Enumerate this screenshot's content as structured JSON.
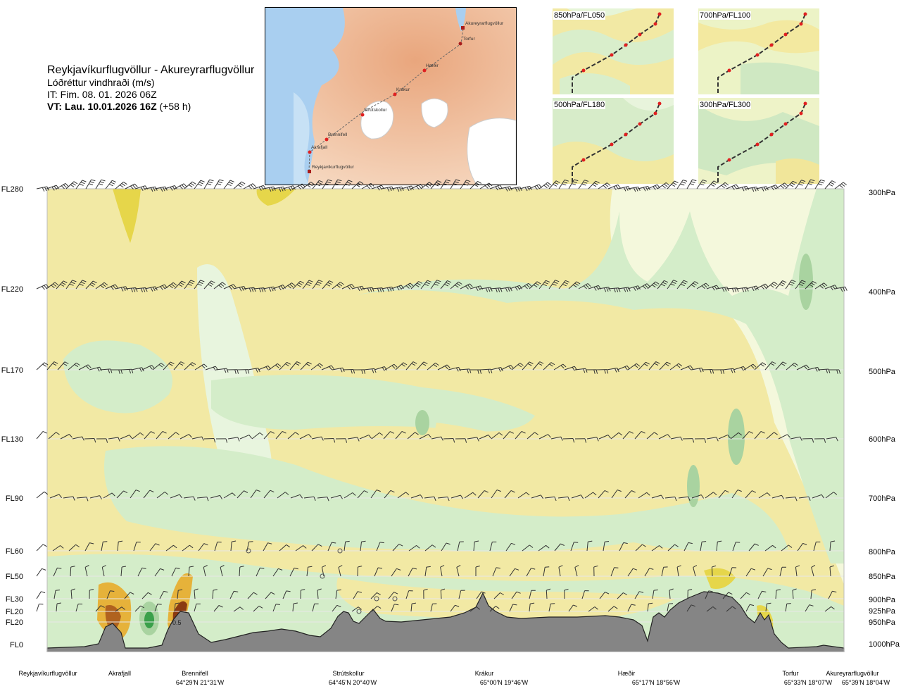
{
  "header": {
    "route": "Reykjavíkurflugvöllur - Akureyrarflugvöllur",
    "product": "Lóðréttur vindhraði (m/s)",
    "init_time": "IT: Fim. 08. 01. 2026 06Z",
    "valid_time": "VT: Lau. 10.01.2026 16Z",
    "lead": "(+58 h)"
  },
  "route_map": {
    "points": [
      "Akureyrarflugvöllur",
      "Torfur",
      "Hæðir",
      "Krákur",
      "Strútskollur",
      "Brennifell",
      "Akrafjall",
      "Reykjavíkurflugvöllur"
    ]
  },
  "mini_maps": [
    {
      "label": "850hPa/FL050"
    },
    {
      "label": "700hPa/FL100"
    },
    {
      "label": "500hPa/FL180"
    },
    {
      "label": "300hPa/FL300"
    }
  ],
  "chart_data": {
    "type": "heatmap",
    "title": "Lóðréttur vindhraði (m/s)",
    "levels": [
      {
        "fl": "FL280",
        "hpa": "300hPa"
      },
      {
        "fl": "FL220",
        "hpa": "400hPa"
      },
      {
        "fl": "FL170",
        "hpa": "500hPa"
      },
      {
        "fl": "FL130",
        "hpa": "600hPa"
      },
      {
        "fl": "FL90",
        "hpa": "700hPa"
      },
      {
        "fl": "FL60",
        "hpa": "800hPa"
      },
      {
        "fl": "FL50",
        "hpa": "850hPa"
      },
      {
        "fl": "FL30",
        "hpa": "900hPa"
      },
      {
        "fl": "FL20",
        "hpa": "925hPa"
      },
      {
        "fl": "FL20",
        "hpa": "950hPa"
      },
      {
        "fl": "FL0",
        "hpa": "1000hPa"
      }
    ],
    "waypoints": [
      {
        "name": "Reykjavíkurflugvöllur",
        "coord": ""
      },
      {
        "name": "Akrafjall",
        "coord": ""
      },
      {
        "name": "Brennifell",
        "coord": "64°29'N 21°31'W"
      },
      {
        "name": "Strútskollur",
        "coord": "64°45'N 20°40'W"
      },
      {
        "name": "Krákur",
        "coord": "65°00'N 19°46'W"
      },
      {
        "name": "Hæðir",
        "coord": "65°17'N 18°56'W"
      },
      {
        "name": "Torfur",
        "coord": "65°33'N 18°07'W"
      },
      {
        "name": "Akureyrarflugvöllur",
        "coord": "65°39'N 18°04'W"
      }
    ],
    "annotation": "0.5"
  }
}
